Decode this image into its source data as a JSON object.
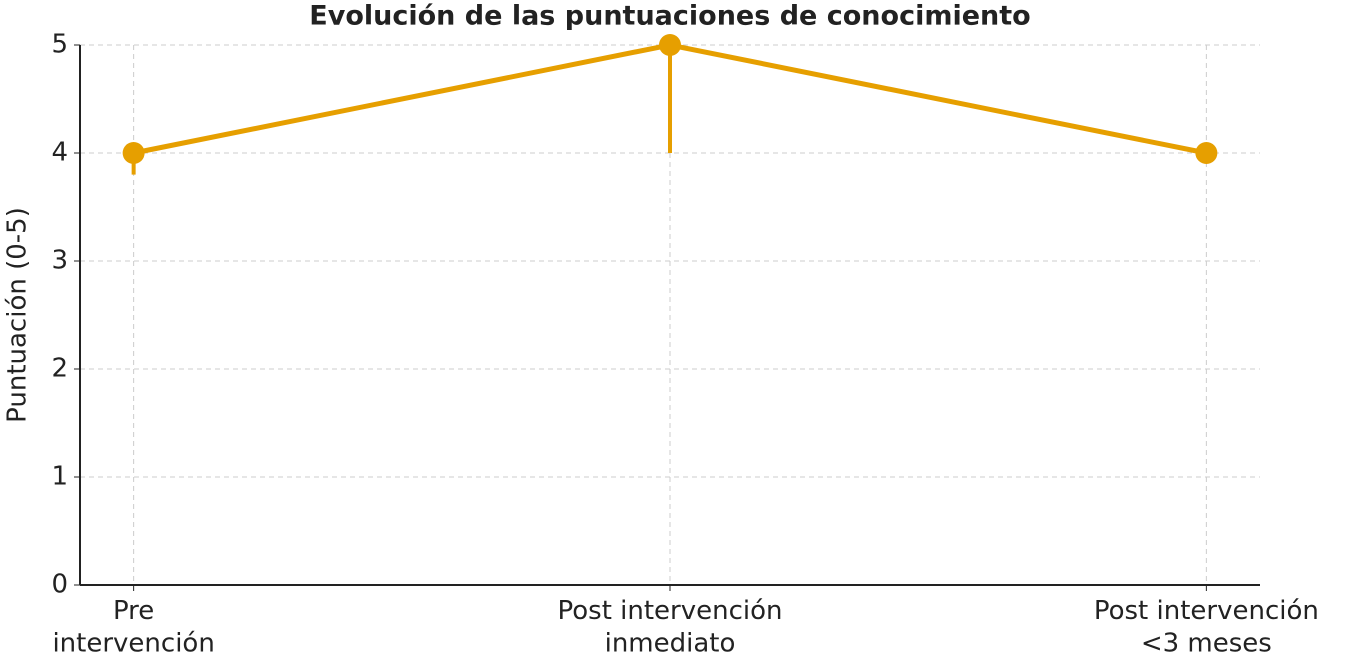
{
  "chart_data": {
    "type": "line",
    "title": "Evolución de las puntuaciones de conocimiento",
    "y_label": "Puntuación (0-5)",
    "categories": [
      "Pre\nintervención",
      "Post intervención\ninmediato",
      "Post intervención\n<3 meses"
    ],
    "series": [
      {
        "name": "Puntuación",
        "color": "#e69f00",
        "values": [
          4,
          5,
          4
        ],
        "lower_errors": [
          0.2,
          1,
          0
        ]
      }
    ],
    "ylim": [
      0,
      5
    ],
    "yticks": [
      0,
      1,
      2,
      3,
      4,
      5
    ],
    "grid": true
  }
}
